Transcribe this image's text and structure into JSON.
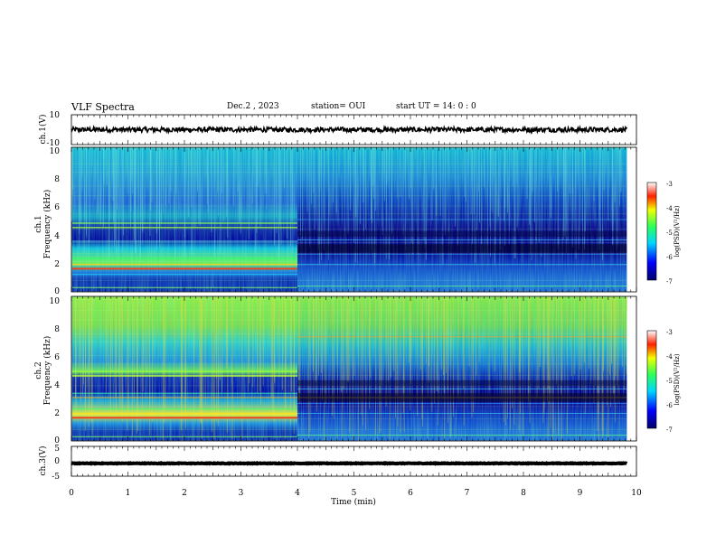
{
  "header": {
    "title": "VLF Spectra",
    "date": "Dec.2  , 2023",
    "station": "station= OUI",
    "start": "start  UT =   14: 0  : 0"
  },
  "chart_data": [
    {
      "type": "line",
      "name": "ch1-waveform",
      "ylabel": "ch.1(V)",
      "ylim": [
        -10,
        10
      ],
      "yticks": [
        "10",
        "-10"
      ],
      "level": 0,
      "xlim": [
        0,
        10
      ]
    },
    {
      "type": "heatmap",
      "name": "ch1-spectrogram",
      "ylabel_line1": "ch.1",
      "ylabel_line2": "Frequency  (kHz)",
      "ylim": [
        0,
        10
      ],
      "yticks": [
        "0",
        "2",
        "4",
        "6",
        "8",
        "10"
      ],
      "xlim": [
        0,
        9.83
      ],
      "transition_min": 4.0,
      "colorbar": {
        "label": "log(PSD)(V²/Hz)",
        "range": [
          -7,
          -3
        ],
        "ticks": [
          "-3",
          "-4",
          "-5",
          "-6",
          "-7"
        ]
      }
    },
    {
      "type": "heatmap",
      "name": "ch2-spectrogram",
      "ylabel_line1": "ch.2",
      "ylabel_line2": "Frequency  (kHz)",
      "ylim": [
        0,
        10
      ],
      "yticks": [
        "0",
        "2",
        "4",
        "6",
        "8",
        "10"
      ],
      "xlim": [
        0,
        9.83
      ],
      "transition_min": 4.0,
      "colorbar": {
        "label": "log(PSD)(V²/Hz)",
        "range": [
          -7,
          -3
        ],
        "ticks": [
          "-3",
          "-4",
          "-5",
          "-6",
          "-7"
        ]
      }
    },
    {
      "type": "line",
      "name": "ch3-waveform",
      "ylabel": "ch.3(V)",
      "ylim": [
        -5,
        5
      ],
      "yticks": [
        "5",
        "0",
        "-5"
      ],
      "level": -0.7,
      "xlim": [
        0,
        10
      ]
    }
  ],
  "xaxis": {
    "label": "Time  (min)",
    "ticks": [
      "0",
      "1",
      "2",
      "3",
      "4",
      "5",
      "6",
      "7",
      "8",
      "9",
      "10"
    ],
    "range": [
      0,
      10
    ]
  }
}
